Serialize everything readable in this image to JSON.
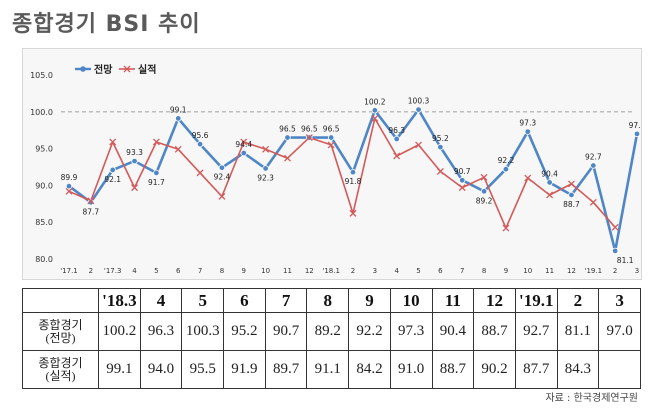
{
  "title": "종합경기 BSI 추이",
  "source": "자료 : 한국경제연구원",
  "chart_data": {
    "type": "line",
    "categories": [
      "'17.1",
      "2",
      "'17.3",
      "4",
      "5",
      "6",
      "7",
      "8",
      "9",
      "10",
      "11",
      "12",
      "'18.1",
      "2",
      "3",
      "4",
      "5",
      "6",
      "7",
      "8",
      "9",
      "10",
      "11",
      "12",
      "'19.1",
      "2",
      "3"
    ],
    "series": [
      {
        "name": "전망",
        "color": "#4f86c6",
        "values": [
          89.9,
          87.7,
          92.1,
          93.3,
          91.7,
          99.1,
          95.6,
          92.4,
          94.4,
          92.3,
          96.5,
          96.5,
          96.5,
          91.8,
          100.2,
          96.3,
          100.3,
          95.2,
          90.7,
          89.2,
          92.2,
          97.3,
          90.4,
          88.7,
          92.7,
          81.1,
          97.0
        ]
      },
      {
        "name": "실적",
        "color": "#d45a5a",
        "values": [
          89.2,
          87.9,
          95.9,
          89.7,
          95.9,
          94.9,
          91.7,
          88.5,
          95.9,
          94.9,
          93.7,
          96.5,
          95.5,
          86.2,
          99.1,
          94.0,
          95.5,
          91.9,
          89.7,
          91.1,
          84.2,
          91.0,
          88.7,
          90.2,
          87.7,
          84.3,
          null
        ]
      }
    ],
    "labeled_series": "전망",
    "ylim": [
      80.0,
      105.0
    ],
    "yticks": [
      "105.0",
      "100.0",
      "95.0",
      "90.0",
      "85.0",
      "80.0"
    ],
    "reference_line": 100.0,
    "legend_position": "top-left",
    "grid": false
  },
  "table": {
    "headers": [
      "",
      "'18.3",
      "4",
      "5",
      "6",
      "7",
      "8",
      "9",
      "10",
      "11",
      "12",
      "'19.1",
      "2",
      "3"
    ],
    "rows": [
      {
        "label_line1": "종합경기",
        "label_line2": "(전망)",
        "values": [
          "100.2",
          "96.3",
          "100.3",
          "95.2",
          "90.7",
          "89.2",
          "92.2",
          "97.3",
          "90.4",
          "88.7",
          "92.7",
          "81.1",
          "97.0"
        ]
      },
      {
        "label_line1": "종합경기",
        "label_line2": "(실적)",
        "values": [
          "99.1",
          "94.0",
          "95.5",
          "91.9",
          "89.7",
          "91.1",
          "84.2",
          "91.0",
          "88.7",
          "90.2",
          "87.7",
          "84.3",
          ""
        ]
      }
    ]
  }
}
